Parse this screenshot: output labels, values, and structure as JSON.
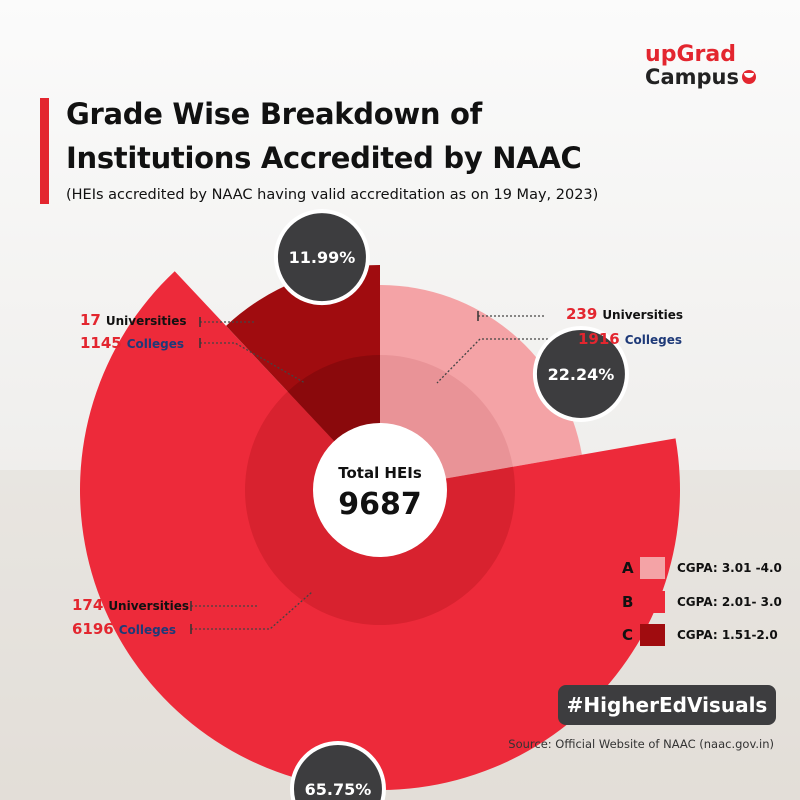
{
  "logo": {
    "line1": "upGrad",
    "line2": "Campus"
  },
  "title_line1": "Grade Wise Breakdown of",
  "title_line2": "Institutions Accredited by NAAC",
  "subtitle": "(HEIs accredited by NAAC having valid accreditation as on 19 May, 2023)",
  "center_label": "Total HEIs",
  "center_value": "9687",
  "annotations": {
    "a": {
      "universities": "239",
      "colleges": "1916"
    },
    "b": {
      "universities": "174",
      "colleges": "6196"
    },
    "c": {
      "universities": "17",
      "colleges": "1145"
    },
    "universities_label": "Universities",
    "colleges_label": "Colleges"
  },
  "legend": [
    {
      "letter": "A",
      "label": "CGPA: 3.01 -4.0",
      "color": "#f4a3a6"
    },
    {
      "letter": "B",
      "label": "CGPA: 2.01- 3.0",
      "color": "#ed2a3a"
    },
    {
      "letter": "C",
      "label": "CGPA:  1.51-2.0",
      "color": "#a00c0f"
    }
  ],
  "hashtag": "#HigherEdVisuals",
  "source": "Source: Official Website of NAAC (naac.gov.in)",
  "chart_data": {
    "type": "pie",
    "title": "Grade Wise Breakdown of Institutions Accredited by NAAC",
    "categories": [
      "A",
      "B",
      "C"
    ],
    "values": [
      22.24,
      65.75,
      11.99
    ],
    "labels": [
      "22.24%",
      "65.75%",
      "11.99%"
    ],
    "colors": [
      "#f4a3a6",
      "#ed2a3a",
      "#a00c0f"
    ],
    "total": 9687
  }
}
